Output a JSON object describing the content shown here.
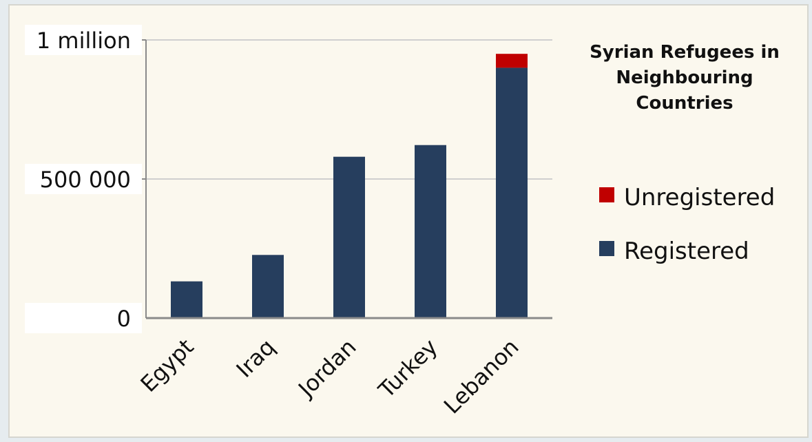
{
  "chart_data": {
    "type": "bar",
    "stacked": true,
    "title": "Syrian Refugees in Neighbouring Countries",
    "title_lines": [
      "Syrian Refugees in",
      "Neighbouring",
      "Countries"
    ],
    "categories": [
      "Egypt",
      "Iraq",
      "Jordan",
      "Turkey",
      "Lebanon"
    ],
    "series": [
      {
        "name": "Registered",
        "color": "#263e5e",
        "values": [
          132000,
          227000,
          580000,
          622000,
          900000
        ]
      },
      {
        "name": "Unregistered",
        "color": "#c00000",
        "values": [
          0,
          0,
          0,
          0,
          50000
        ]
      }
    ],
    "ylim": [
      0,
      1000000
    ],
    "yticks": [
      {
        "value": 0,
        "label": "0"
      },
      {
        "value": 500000,
        "label": "500 000"
      },
      {
        "value": 1000000,
        "label": "1 million"
      }
    ],
    "legend_order": [
      "Unregistered",
      "Registered"
    ],
    "legend_position": "right",
    "grid": true
  }
}
